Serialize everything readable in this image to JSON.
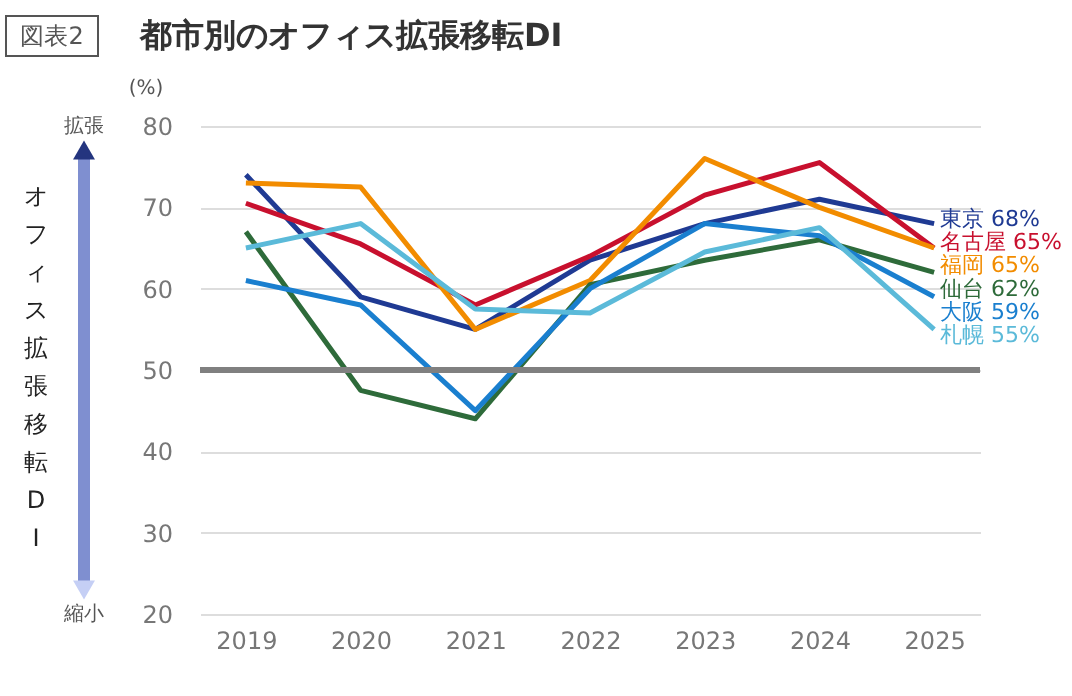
{
  "chart_data": {
    "type": "line",
    "title": "都市別のオフィス拡張移転DI",
    "ylabel": "オフィス拡張移転DI",
    "annotations": [
      "図表2",
      "(%)",
      "拡張",
      "縮小"
    ],
    "categories": [
      "2019",
      "2020",
      "2021",
      "2022",
      "2023",
      "2024",
      "2025"
    ],
    "series": [
      {
        "name": "東京",
        "color": "#1f3a93",
        "values": [
          74,
          59,
          55,
          63.5,
          68,
          71,
          68
        ],
        "value_labels": [
          null,
          null,
          null,
          null,
          null,
          null,
          "68%"
        ]
      },
      {
        "name": "名古屋",
        "color": "#c8102e",
        "values": [
          70.5,
          65.5,
          58,
          64,
          71.5,
          75.5,
          65
        ],
        "value_labels": [
          null,
          null,
          null,
          null,
          null,
          null,
          "65%"
        ]
      },
      {
        "name": "福岡",
        "color": "#f28c00",
        "values": [
          73,
          72.5,
          55,
          61,
          76,
          70,
          65
        ],
        "value_labels": [
          null,
          null,
          null,
          null,
          null,
          null,
          "65%"
        ]
      },
      {
        "name": "仙台",
        "color": "#2e6b3a",
        "values": [
          67,
          47.5,
          44,
          60.5,
          63.5,
          66,
          62
        ],
        "value_labels": [
          null,
          null,
          null,
          null,
          null,
          null,
          "62%"
        ]
      },
      {
        "name": "大阪",
        "color": "#1a7fcf",
        "values": [
          61,
          58,
          45,
          60,
          68,
          66.5,
          59
        ],
        "value_labels": [
          null,
          null,
          null,
          null,
          null,
          null,
          "59%"
        ]
      },
      {
        "name": "札幌",
        "color": "#5bbad9",
        "values": [
          65,
          68,
          57.5,
          57,
          64.5,
          67.5,
          55
        ],
        "value_labels": [
          null,
          null,
          null,
          null,
          null,
          null,
          "55%"
        ]
      }
    ],
    "ylim": [
      20,
      80
    ],
    "yticks": [
      20,
      30,
      40,
      50,
      60,
      70,
      80
    ],
    "grid": "y",
    "legend": false,
    "marker": "none",
    "line_style": "solid",
    "ref_lines": [
      {
        "axis": "y",
        "value": 50,
        "color": "#808080"
      }
    ]
  }
}
